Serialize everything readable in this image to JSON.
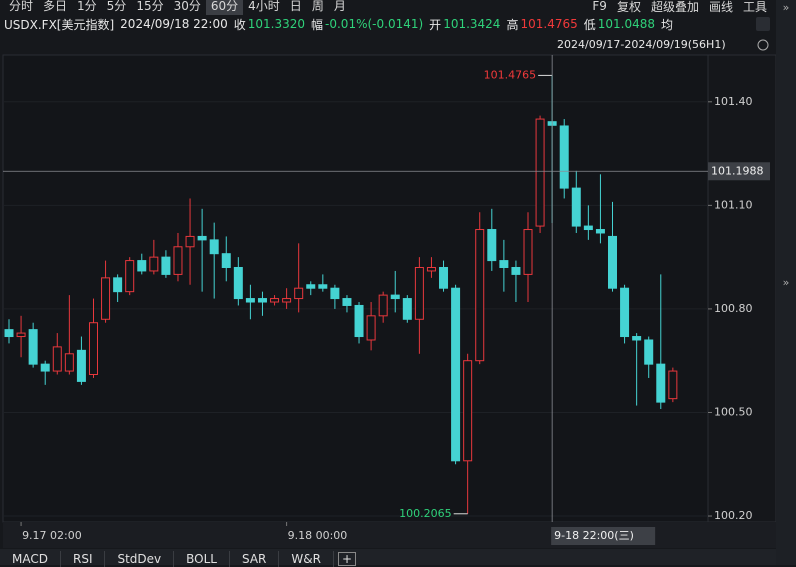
{
  "toolbar": {
    "periods": [
      "分时",
      "多日",
      "1分",
      "5分",
      "15分",
      "30分",
      "60分",
      "4小时",
      "日",
      "周",
      "月"
    ],
    "selected": 6,
    "tools": [
      "F9",
      "复权",
      "超级叠加",
      "画线",
      "工具"
    ]
  },
  "quote": {
    "symbol": "USDX.FX[美元指数]",
    "time": "2024/09/18 22:00",
    "close_label": "收",
    "close": "101.3320",
    "change_label": "幅",
    "change": "-0.01%(-0.0141)",
    "open_label": "开",
    "open": "101.3424",
    "high_label": "高",
    "high": "101.4765",
    "low_label": "低",
    "low": "101.0488",
    "avg_label": "均"
  },
  "chart_data": {
    "type": "candlestick",
    "subtitle": "2024/09/17-2024/09/19(56H1)",
    "categories": [
      null,
      "9.17 02:00",
      null,
      null,
      null,
      null,
      null,
      null,
      null,
      null,
      null,
      null,
      null,
      null,
      null,
      null,
      null,
      null,
      null,
      null,
      null,
      null,
      null,
      "9.18 00:00",
      null,
      null,
      null,
      null,
      null,
      null,
      null,
      null,
      null,
      null,
      null,
      null,
      null,
      null,
      null,
      null,
      null,
      null,
      null,
      null,
      null,
      null,
      null,
      null,
      null,
      null,
      null,
      null,
      null,
      null,
      null,
      null
    ],
    "open": [
      100.74,
      100.72,
      100.74,
      100.64,
      100.62,
      100.62,
      100.68,
      100.61,
      100.77,
      100.89,
      100.85,
      100.94,
      100.91,
      100.95,
      100.9,
      100.98,
      101.01,
      101.0,
      100.96,
      100.92,
      100.83,
      100.83,
      100.82,
      100.82,
      100.83,
      100.87,
      100.87,
      100.86,
      100.83,
      100.81,
      100.71,
      100.78,
      100.84,
      100.83,
      100.77,
      100.91,
      100.92,
      100.86,
      100.36,
      100.65,
      101.03,
      100.94,
      100.92,
      100.9,
      101.04,
      101.3424,
      101.33,
      101.15,
      101.04,
      101.03,
      101.01,
      100.86,
      100.72,
      100.71,
      100.64,
      100.54
    ],
    "high": [
      100.77,
      100.78,
      100.76,
      100.65,
      100.73,
      100.84,
      100.72,
      100.83,
      100.94,
      100.9,
      100.95,
      100.96,
      101.0,
      100.97,
      101.02,
      101.12,
      101.09,
      101.05,
      101.01,
      100.95,
      100.87,
      100.85,
      100.84,
      100.86,
      100.99,
      100.88,
      100.9,
      100.87,
      100.84,
      100.82,
      100.82,
      100.85,
      100.91,
      100.84,
      100.95,
      100.95,
      100.94,
      100.87,
      100.67,
      101.08,
      101.09,
      101.0,
      100.94,
      101.08,
      101.36,
      101.4765,
      101.35,
      101.2,
      101.1,
      101.19,
      101.11,
      100.87,
      100.73,
      100.72,
      100.9,
      100.63
    ],
    "low": [
      100.7,
      100.66,
      100.63,
      100.58,
      100.61,
      100.61,
      100.58,
      100.6,
      100.76,
      100.82,
      100.84,
      100.9,
      100.9,
      100.89,
      100.88,
      100.87,
      100.85,
      100.83,
      100.88,
      100.81,
      100.77,
      100.78,
      100.81,
      100.8,
      100.79,
      100.84,
      100.85,
      100.8,
      100.79,
      100.7,
      100.68,
      100.76,
      100.79,
      100.76,
      100.67,
      100.89,
      100.85,
      100.35,
      100.2065,
      100.64,
      100.91,
      100.85,
      100.82,
      100.82,
      101.02,
      101.0488,
      101.12,
      101.02,
      101.0,
      100.99,
      100.85,
      100.7,
      100.52,
      100.6,
      100.51,
      100.53
    ],
    "close": [
      100.72,
      100.73,
      100.64,
      100.62,
      100.69,
      100.67,
      100.59,
      100.76,
      100.89,
      100.85,
      100.94,
      100.91,
      100.95,
      100.9,
      100.98,
      101.01,
      101.0,
      100.96,
      100.92,
      100.83,
      100.82,
      100.82,
      100.83,
      100.83,
      100.86,
      100.86,
      100.86,
      100.83,
      100.81,
      100.72,
      100.78,
      100.84,
      100.83,
      100.77,
      100.92,
      100.92,
      100.86,
      100.36,
      100.65,
      101.03,
      100.94,
      100.92,
      100.9,
      101.03,
      101.35,
      101.332,
      101.15,
      101.04,
      101.03,
      101.02,
      100.86,
      100.72,
      100.71,
      100.64,
      100.53,
      100.62
    ],
    "up_color": "#e8383d",
    "down_color": "#45d3d3",
    "ylim": [
      100.1827,
      101.5356
    ],
    "yticks": [
      {
        "value": 100.2,
        "label": "100.20"
      },
      {
        "value": 100.5,
        "label": "100.50"
      },
      {
        "value": 100.8,
        "label": "100.80"
      },
      {
        "value": 101.1,
        "label": "101.10"
      },
      {
        "value": 101.4,
        "label": "101.40"
      }
    ],
    "grid": true,
    "crosshair": {
      "value": 101.1988,
      "x_label": "9-18 22:00(三)"
    }
  },
  "indicator_tabs": [
    "MACD",
    "RSI",
    "StdDev",
    "BOLL",
    "SAR",
    "W&R"
  ]
}
